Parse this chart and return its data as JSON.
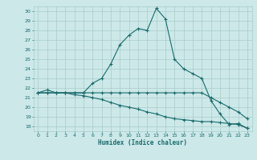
{
  "title": "",
  "xlabel": "Humidex (Indice chaleur)",
  "ylabel": "",
  "bg_color": "#cce8e8",
  "grid_color": "#aacccc",
  "line_color": "#1a6b6b",
  "xlim": [
    -0.5,
    23.5
  ],
  "ylim": [
    17.5,
    30.5
  ],
  "xticks": [
    0,
    1,
    2,
    3,
    4,
    5,
    6,
    7,
    8,
    9,
    10,
    11,
    12,
    13,
    14,
    15,
    16,
    17,
    18,
    19,
    20,
    21,
    22,
    23
  ],
  "yticks": [
    18,
    19,
    20,
    21,
    22,
    23,
    24,
    25,
    26,
    27,
    28,
    29,
    30
  ],
  "series1_x": [
    0,
    1,
    2,
    3,
    4,
    5,
    6,
    7,
    8,
    9,
    10,
    11,
    12,
    13,
    14,
    15,
    16,
    17,
    18,
    19,
    20,
    21,
    22,
    23
  ],
  "series1_y": [
    21.5,
    21.8,
    21.5,
    21.5,
    21.5,
    21.5,
    22.5,
    23.0,
    24.5,
    26.5,
    27.5,
    28.2,
    28.0,
    30.3,
    29.2,
    25.0,
    24.0,
    23.5,
    23.0,
    20.7,
    19.3,
    18.2,
    18.3,
    17.8
  ],
  "series2_x": [
    0,
    1,
    2,
    3,
    4,
    5,
    6,
    7,
    8,
    9,
    10,
    11,
    12,
    13,
    14,
    15,
    16,
    17,
    18,
    19,
    20,
    21,
    22,
    23
  ],
  "series2_y": [
    21.5,
    21.5,
    21.5,
    21.5,
    21.5,
    21.5,
    21.5,
    21.5,
    21.5,
    21.5,
    21.5,
    21.5,
    21.5,
    21.5,
    21.5,
    21.5,
    21.5,
    21.5,
    21.5,
    21.0,
    20.5,
    20.0,
    19.5,
    18.8
  ],
  "series3_x": [
    0,
    1,
    2,
    3,
    4,
    5,
    6,
    7,
    8,
    9,
    10,
    11,
    12,
    13,
    14,
    15,
    16,
    17,
    18,
    19,
    20,
    21,
    22,
    23
  ],
  "series3_y": [
    21.5,
    21.5,
    21.5,
    21.5,
    21.3,
    21.2,
    21.0,
    20.8,
    20.5,
    20.2,
    20.0,
    19.8,
    19.5,
    19.3,
    19.0,
    18.8,
    18.7,
    18.6,
    18.5,
    18.5,
    18.4,
    18.3,
    18.2,
    17.8
  ],
  "xlabel_fontsize": 5.5,
  "tick_fontsize": 4.5,
  "linewidth": 0.8,
  "markersize": 2.5,
  "markeredgewidth": 0.8
}
